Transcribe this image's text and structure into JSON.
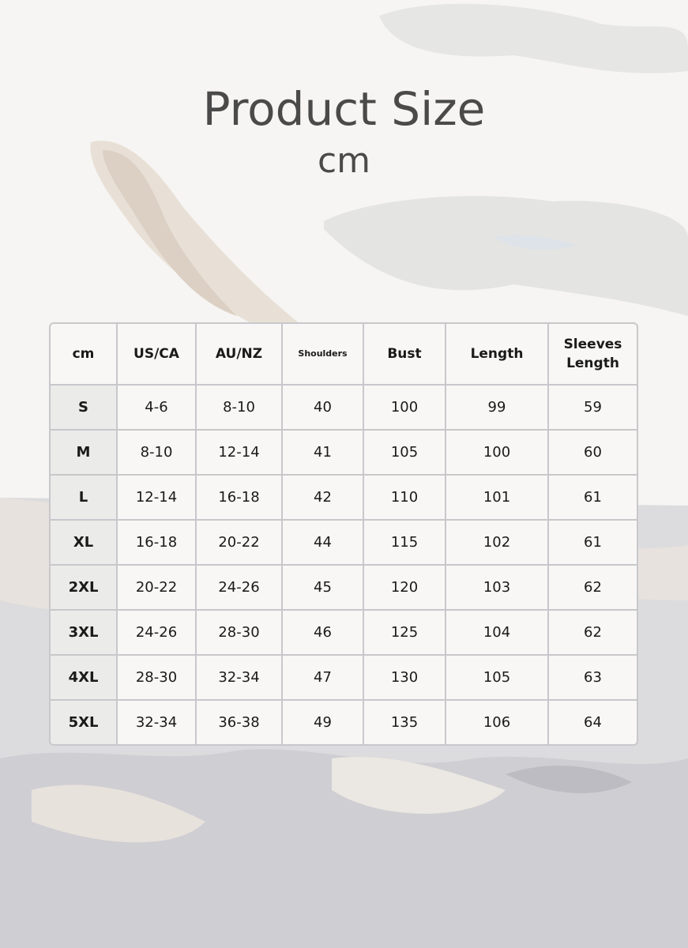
{
  "title": "Product Size",
  "unit": "cm",
  "colors": {
    "text": "#4a4a4a",
    "border": "#c8c8cc",
    "size_cell": "#ebebea",
    "background": "#f6f5f3"
  },
  "table": {
    "headers": [
      "cm",
      "US/CA",
      "AU/NZ",
      "Shoulders",
      "Bust",
      "Length",
      "Sleeves Length"
    ],
    "rows": [
      [
        "S",
        "4-6",
        "8-10",
        "40",
        "100",
        "99",
        "59"
      ],
      [
        "M",
        "8-10",
        "12-14",
        "41",
        "105",
        "100",
        "60"
      ],
      [
        "L",
        "12-14",
        "16-18",
        "42",
        "110",
        "101",
        "61"
      ],
      [
        "XL",
        "16-18",
        "20-22",
        "44",
        "115",
        "102",
        "61"
      ],
      [
        "2XL",
        "20-22",
        "24-26",
        "45",
        "120",
        "103",
        "62"
      ],
      [
        "3XL",
        "24-26",
        "28-30",
        "46",
        "125",
        "104",
        "62"
      ],
      [
        "4XL",
        "28-30",
        "32-34",
        "47",
        "130",
        "105",
        "63"
      ],
      [
        "5XL",
        "32-34",
        "36-38",
        "49",
        "135",
        "106",
        "64"
      ]
    ]
  }
}
